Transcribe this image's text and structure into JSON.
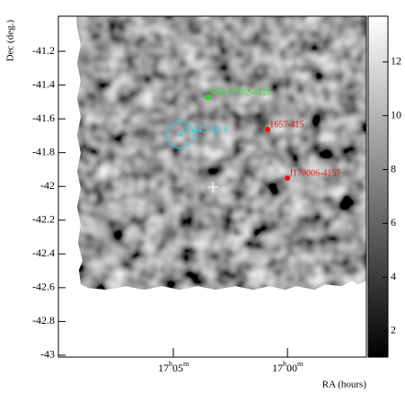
{
  "chart_data": {
    "type": "skymap",
    "xlabel": "RA (hours)",
    "ylabel": "Dec (deg.)",
    "xlim": [
      17.1673,
      16.9424
    ],
    "ylim": [
      -43.011,
      -40.992
    ],
    "xticks": [
      {
        "value": 17.0833333,
        "label": "17h05m"
      },
      {
        "value": 17.0,
        "label": "17h00m"
      }
    ],
    "yticks": [
      -41.2,
      -41.4,
      -41.6,
      -41.8,
      -42,
      -42.2,
      -42.4,
      -42.6,
      -42.8,
      -43
    ],
    "zlim": [
      1.03,
      13.7
    ],
    "zticks": [
      2,
      4,
      6,
      8,
      10,
      12
    ],
    "markers": [
      {
        "label": "PSR J1702-4128",
        "x": 17.0578,
        "y": -41.472,
        "color": "#22dd22",
        "marker": "dot"
      },
      {
        "label": "G344.7-00.1",
        "x": 17.0781,
        "y": -41.695,
        "color": "#22d8e8",
        "marker": "circle"
      },
      {
        "label": "1657-415",
        "x": 17.0144,
        "y": -41.663,
        "color": "#ee1111",
        "marker": "dot"
      },
      {
        "label": "J170006-4157",
        "x": 17.0,
        "y": -41.951,
        "color": "#ee1111",
        "marker": "dot"
      },
      {
        "x": 17.0545,
        "y": -42.004,
        "color": "#ffffff",
        "marker": "cross"
      }
    ]
  }
}
